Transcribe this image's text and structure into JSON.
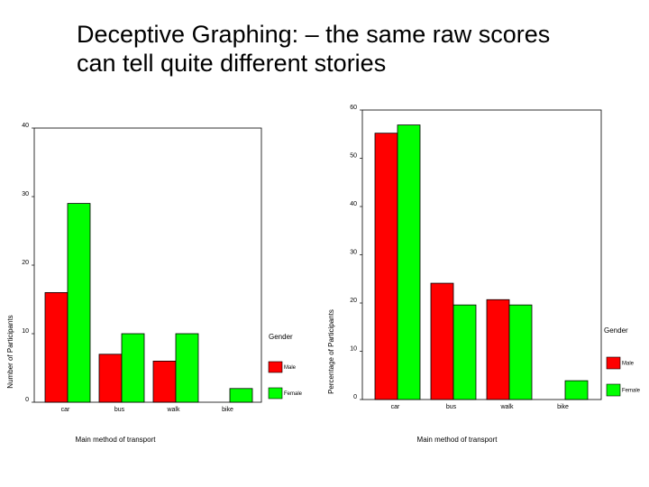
{
  "title": {
    "line1": "Deceptive Graphing: – the same raw scores",
    "line2": "can tell quite different stories"
  },
  "colors": {
    "male": "#ff0000",
    "female": "#00ff00"
  },
  "chart_data": [
    {
      "type": "bar",
      "categories": [
        "car",
        "bus",
        "walk",
        "bike"
      ],
      "series": [
        {
          "name": "Male",
          "values": [
            16,
            7,
            6,
            0
          ]
        },
        {
          "name": "Female",
          "values": [
            29,
            10,
            10,
            2
          ]
        }
      ],
      "title": "",
      "xlabel": "Main method of transport",
      "ylabel": "Number of Participants",
      "ylim": [
        0,
        40
      ],
      "yticks": [
        "0",
        "10",
        "20",
        "30",
        "40"
      ],
      "legend": {
        "title": "Gender",
        "position": "right"
      }
    },
    {
      "type": "bar",
      "categories": [
        "car",
        "bus",
        "walk",
        "bike"
      ],
      "series": [
        {
          "name": "Male",
          "values": [
            55.2,
            24.1,
            20.7,
            0
          ]
        },
        {
          "name": "Female",
          "values": [
            56.9,
            19.6,
            19.6,
            3.9
          ]
        }
      ],
      "title": "",
      "xlabel": "Main method of transport",
      "ylabel": "Percentage of Participants",
      "ylim": [
        0,
        60
      ],
      "yticks": [
        "0",
        "10",
        "20",
        "30",
        "40",
        "50",
        "60"
      ],
      "legend": {
        "title": "Gender",
        "position": "right"
      }
    }
  ]
}
